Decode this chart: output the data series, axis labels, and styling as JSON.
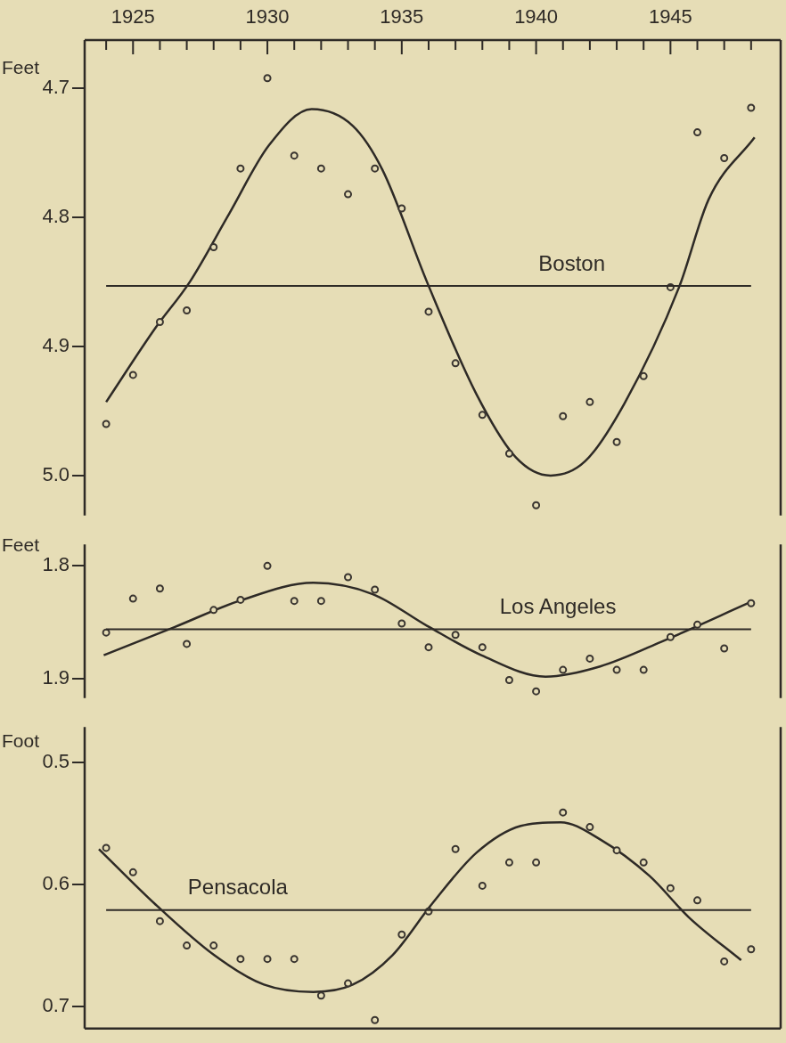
{
  "chart_data": [
    {
      "type": "scatter",
      "ylabel": "Feet",
      "x": [
        1924,
        1925,
        1926,
        1927,
        1928,
        1929,
        1930,
        1931,
        1932,
        1933,
        1934,
        1935,
        1936,
        1937,
        1938,
        1939,
        1940,
        1941,
        1942,
        1943,
        1944,
        1945,
        1946,
        1947,
        1948
      ],
      "series": [
        {
          "marker": "circle",
          "color": "#3a3530",
          "values": [
            4.96,
            4.922,
            4.881,
            4.872,
            4.823,
            4.762,
            4.692,
            4.752,
            4.762,
            4.782,
            4.762,
            4.793,
            4.873,
            4.913,
            4.953,
            4.983,
            5.023,
            4.954,
            4.943,
            4.974,
            4.923,
            4.854,
            4.734,
            4.754,
            4.715
          ]
        },
        {
          "type": "line",
          "color": "#2e2a26",
          "x": [
            1924.0,
            1925.82,
            1927.11,
            1928.58,
            1930.06,
            1931.65,
            1933.18,
            1934.28,
            1935.94,
            1937.78,
            1939.25,
            1940.54,
            1941.82,
            1943.29,
            1945.32,
            1946.42,
            1948.13
          ],
          "values": [
            4.943,
            4.886,
            4.85,
            4.797,
            4.744,
            4.716,
            4.729,
            4.763,
            4.85,
            4.937,
            4.986,
            5.0,
            4.989,
            4.944,
            4.854,
            4.786,
            4.738
          ]
        }
      ],
      "ref_lines": [
        {
          "axis": "y",
          "value": 4.853,
          "label": "Boston",
          "color": "#2e2a26"
        }
      ],
      "xlim": [
        1923.2,
        1949.1
      ],
      "xticks": [
        {
          "value": 1924,
          "label": null
        },
        1925,
        {
          "value": 1926,
          "label": null
        },
        {
          "value": 1927,
          "label": null
        },
        {
          "value": 1928,
          "label": null
        },
        {
          "value": 1929,
          "label": null
        },
        1930,
        {
          "value": 1931,
          "label": null
        },
        {
          "value": 1932,
          "label": null
        },
        {
          "value": 1933,
          "label": null
        },
        {
          "value": 1934,
          "label": null
        },
        1935,
        {
          "value": 1936,
          "label": null
        },
        {
          "value": 1937,
          "label": null
        },
        {
          "value": 1938,
          "label": null
        },
        {
          "value": 1939,
          "label": null
        },
        1940,
        {
          "value": 1941,
          "label": null
        },
        {
          "value": 1942,
          "label": null
        },
        {
          "value": 1943,
          "label": null
        },
        {
          "value": 1944,
          "label": null
        },
        1945,
        {
          "value": 1946,
          "label": null
        },
        {
          "value": 1947,
          "label": null
        },
        {
          "value": 1948,
          "label": null
        }
      ],
      "ylim": [
        5.031,
        4.6625
      ],
      "yticks": [
        4.7,
        4.8,
        4.9,
        {
          "value": 5,
          "label": "5.0"
        }
      ]
    },
    {
      "type": "scatter",
      "ylabel": "Feet",
      "tick_labels": "y",
      "x": [
        1924,
        1925,
        1926,
        1927,
        1928,
        1929,
        1930,
        1931,
        1932,
        1933,
        1934,
        1935,
        1936,
        1937,
        1938,
        1939,
        1940,
        1941,
        1942,
        1943,
        1944,
        1945,
        1946,
        1947,
        1948
      ],
      "series": [
        {
          "marker": "circle",
          "color": "#3a3530",
          "values": [
            1.859,
            1.829,
            1.82,
            1.869,
            1.839,
            1.83,
            1.8,
            1.831,
            1.831,
            1.81,
            1.821,
            1.851,
            1.872,
            1.861,
            1.872,
            1.901,
            1.911,
            1.892,
            1.882,
            1.892,
            1.892,
            1.863,
            1.852,
            1.873,
            1.833
          ]
        },
        {
          "type": "line",
          "color": "#2e2a26",
          "x": [
            1923.91,
            1926.56,
            1928.95,
            1931.71,
            1933.92,
            1935.94,
            1937.96,
            1940.35,
            1942.38,
            1944.77,
            1947.89
          ],
          "values": [
            1.879,
            1.854,
            1.831,
            1.815,
            1.825,
            1.853,
            1.879,
            1.898,
            1.889,
            1.866,
            1.833
          ]
        }
      ],
      "ref_lines": [
        {
          "axis": "y",
          "value": 1.856,
          "label": "Los Angeles",
          "color": "#2e2a26"
        }
      ],
      "xlim": [
        1923.2,
        1949.1
      ],
      "ylim": [
        1.917,
        1.781
      ],
      "yticks": [
        1.8,
        1.9
      ]
    },
    {
      "type": "scatter",
      "ylabel": "Foot",
      "tick_labels": "y",
      "x": [
        1924,
        1925,
        1926,
        1927,
        1928,
        1929,
        1930,
        1931,
        1932,
        1933,
        1934,
        1935,
        1936,
        1937,
        1938,
        1939,
        1940,
        1941,
        1942,
        1943,
        1944,
        1945,
        1946,
        1947,
        1948
      ],
      "series": [
        {
          "marker": "circle",
          "color": "#3a3530",
          "values": [
            0.57,
            0.59,
            0.63,
            0.65,
            0.65,
            0.661,
            0.661,
            0.661,
            0.691,
            0.681,
            0.711,
            0.641,
            0.622,
            0.571,
            0.601,
            0.582,
            0.582,
            0.541,
            0.553,
            0.572,
            0.582,
            0.603,
            0.613,
            0.663,
            0.653
          ]
        },
        {
          "type": "line",
          "color": "#2e2a26",
          "x": [
            1923.73,
            1925.82,
            1928.03,
            1929.87,
            1931.71,
            1933.18,
            1934.65,
            1936.12,
            1937.78,
            1939.43,
            1940.91,
            1942.38,
            1944.22,
            1945.69,
            1947.63
          ],
          "values": [
            0.571,
            0.616,
            0.658,
            0.682,
            0.688,
            0.682,
            0.658,
            0.616,
            0.574,
            0.552,
            0.549,
            0.563,
            0.593,
            0.627,
            0.662
          ]
        }
      ],
      "ref_lines": [
        {
          "axis": "y",
          "value": 0.621,
          "label": "Pensacola",
          "color": "#2e2a26"
        }
      ],
      "xlim": [
        1923.2,
        1949.1
      ],
      "ylim": [
        0.718,
        0.471
      ],
      "yticks": [
        0.5,
        0.6,
        0.7
      ]
    }
  ]
}
